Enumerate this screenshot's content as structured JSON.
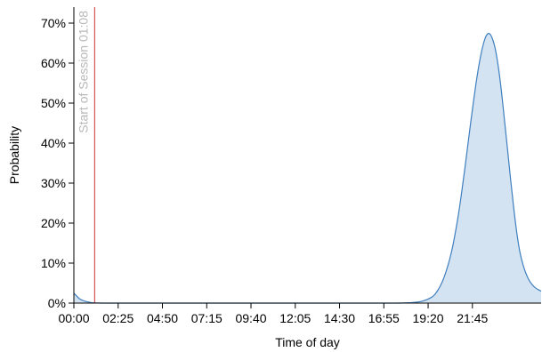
{
  "chart_data": {
    "type": "area",
    "xlabel": "Time of day",
    "ylabel": "Probability",
    "x_unit": "minutes since 00:00",
    "xlim": [
      0,
      1530
    ],
    "ylim": [
      0,
      0.74
    ],
    "x_ticks": [
      {
        "value": 0,
        "label": "00:00"
      },
      {
        "value": 145,
        "label": "02:25"
      },
      {
        "value": 290,
        "label": "04:50"
      },
      {
        "value": 435,
        "label": "07:15"
      },
      {
        "value": 580,
        "label": "09:40"
      },
      {
        "value": 725,
        "label": "12:05"
      },
      {
        "value": 870,
        "label": "14:30"
      },
      {
        "value": 1015,
        "label": "16:55"
      },
      {
        "value": 1160,
        "label": "19:20"
      },
      {
        "value": 1305,
        "label": "21:45"
      }
    ],
    "y_ticks": [
      {
        "value": 0,
        "label": "0%"
      },
      {
        "value": 0.1,
        "label": "10%"
      },
      {
        "value": 0.2,
        "label": "20%"
      },
      {
        "value": 0.3,
        "label": "30%"
      },
      {
        "value": 0.4,
        "label": "40%"
      },
      {
        "value": 0.5,
        "label": "50%"
      },
      {
        "value": 0.6,
        "label": "60%"
      },
      {
        "value": 0.7,
        "label": "70%"
      }
    ],
    "series": [
      {
        "x": [
          0,
          10,
          20,
          40,
          60,
          80,
          100,
          150,
          300,
          600,
          900,
          1050,
          1100,
          1130,
          1150,
          1170,
          1180,
          1190,
          1200,
          1210,
          1220,
          1230,
          1240,
          1250,
          1260,
          1270,
          1280,
          1290,
          1300,
          1310,
          1320,
          1330,
          1340,
          1350,
          1360,
          1370,
          1380,
          1390,
          1400,
          1410,
          1420,
          1430,
          1440,
          1450,
          1460,
          1470,
          1480,
          1490,
          1500,
          1510,
          1520,
          1530
        ],
        "y": [
          0.025,
          0.017,
          0.01,
          0.004,
          0.001,
          0.0003,
          0,
          0,
          0,
          0,
          0,
          0,
          0.001,
          0.003,
          0.007,
          0.014,
          0.02,
          0.03,
          0.043,
          0.06,
          0.082,
          0.108,
          0.14,
          0.18,
          0.225,
          0.278,
          0.335,
          0.395,
          0.455,
          0.512,
          0.565,
          0.61,
          0.645,
          0.668,
          0.674,
          0.662,
          0.635,
          0.59,
          0.53,
          0.458,
          0.385,
          0.31,
          0.24,
          0.178,
          0.13,
          0.098,
          0.075,
          0.058,
          0.047,
          0.039,
          0.034,
          0.03
        ]
      }
    ],
    "annotations": [
      {
        "x": 68,
        "label": "Start of Session 01:08"
      }
    ],
    "colors": {
      "line": "#3f7fbf",
      "fill": "#d4e3f1",
      "marker": "#cc3333",
      "marker_label": "#b8b8b8",
      "axis": "#000000"
    },
    "grid": false
  }
}
